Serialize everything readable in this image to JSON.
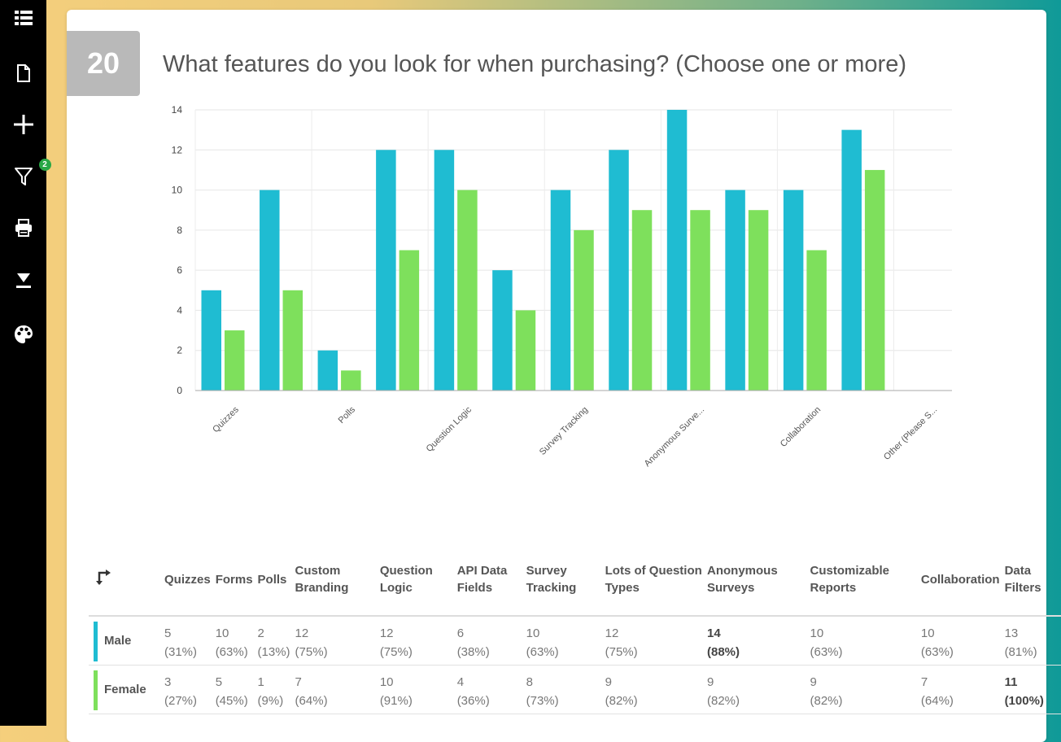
{
  "question": {
    "number": "20",
    "title": "What features do you look for when purchasing? (Choose one or more)"
  },
  "colors": {
    "male": "#1fbcd2",
    "female": "#7ee05c"
  },
  "sidebar": {
    "icons": [
      "list-icon",
      "document-icon",
      "plus-icon",
      "filter-icon",
      "print-icon",
      "download-icon",
      "palette-icon"
    ],
    "filter_badge": "2"
  },
  "chart_data": {
    "type": "bar",
    "categories": [
      "Quizzes",
      "Forms",
      "Polls",
      "Custom Branding",
      "Question Logic",
      "API Data Fields",
      "Survey Tracking",
      "Lots of Question Types",
      "Anonymous Surveys",
      "Customizable Reports",
      "Collaboration",
      "Data Filters",
      "Other (Please Specify)"
    ],
    "x_tick_labels": [
      "Quizzes",
      "Polls",
      "Question Logic",
      "Survey Tracking",
      "Anonymous Surve...",
      "Collaboration",
      "Other (Please S..."
    ],
    "series": [
      {
        "name": "Male",
        "values": [
          5,
          10,
          2,
          12,
          12,
          6,
          10,
          12,
          14,
          10,
          10,
          13,
          0
        ]
      },
      {
        "name": "Female",
        "values": [
          3,
          5,
          1,
          7,
          10,
          4,
          8,
          9,
          9,
          9,
          7,
          11,
          0
        ]
      }
    ],
    "ylim": [
      0,
      14
    ],
    "yticks": [
      0,
      2,
      4,
      6,
      8,
      10,
      12,
      14
    ],
    "grid": true
  },
  "table": {
    "headers": [
      "Quizzes",
      "Forms",
      "Polls",
      "Custom Branding",
      "Question Logic",
      "API Data Fields",
      "Survey Tracking",
      "Lots of Question Types",
      "Anonymous Surveys",
      "Customizable Reports",
      "Collaboration",
      "Data Filters"
    ],
    "rows": [
      {
        "label": "Male",
        "color": "#1fbcd2",
        "counts": [
          "5",
          "10",
          "2",
          "12",
          "12",
          "6",
          "10",
          "12",
          "14",
          "10",
          "10",
          "13"
        ],
        "percents": [
          "(31%)",
          "(63%)",
          "(13%)",
          "(75%)",
          "(75%)",
          "(38%)",
          "(63%)",
          "(75%)",
          "(88%)",
          "(63%)",
          "(63%)",
          "(81%)"
        ],
        "bold_index": 8
      },
      {
        "label": "Female",
        "color": "#7ee05c",
        "counts": [
          "3",
          "5",
          "1",
          "7",
          "10",
          "4",
          "8",
          "9",
          "9",
          "9",
          "7",
          "11"
        ],
        "percents": [
          "(27%)",
          "(45%)",
          "(9%)",
          "(64%)",
          "(91%)",
          "(36%)",
          "(73%)",
          "(82%)",
          "(82%)",
          "(82%)",
          "(64%)",
          "(100%)"
        ],
        "bold_index": 11
      }
    ]
  }
}
